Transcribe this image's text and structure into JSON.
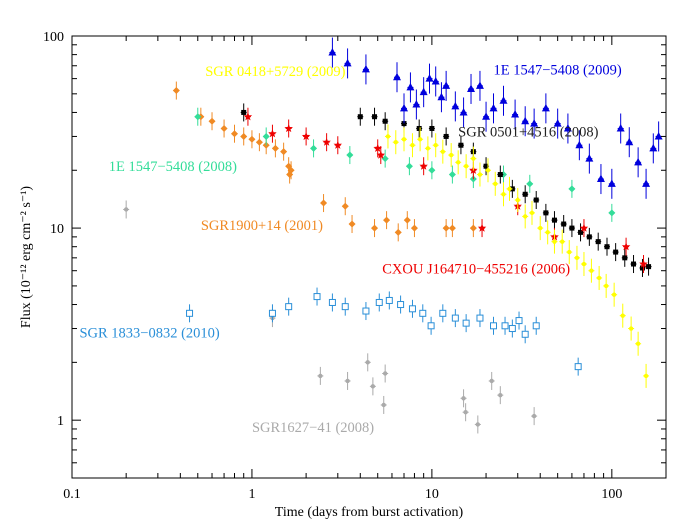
{
  "chart_data": {
    "type": "scatter",
    "xlabel": "Time (days from burst activation)",
    "ylabel": "Flux (10⁻¹² erg cm⁻² s⁻¹)",
    "x_scale": "log",
    "y_scale": "log",
    "xlim": [
      0.1,
      200
    ],
    "ylim": [
      0.5,
      100
    ],
    "x_ticks": [
      {
        "value": 0.1,
        "label": "0.1"
      },
      {
        "value": 1,
        "label": "1"
      },
      {
        "value": 10,
        "label": "10"
      },
      {
        "value": 100,
        "label": "100"
      }
    ],
    "y_ticks": [
      {
        "value": 1,
        "label": "1"
      },
      {
        "value": 10,
        "label": "10"
      },
      {
        "value": 100,
        "label": "100"
      }
    ],
    "grid": false,
    "series": [
      {
        "name": "1E 1547−5408 (2009)",
        "color": "#0000dd",
        "marker": "triangle",
        "points": [
          {
            "x": 2.8,
            "y": 82
          },
          {
            "x": 3.4,
            "y": 72
          },
          {
            "x": 4.3,
            "y": 67
          },
          {
            "x": 6.4,
            "y": 61
          },
          {
            "x": 7.0,
            "y": 42
          },
          {
            "x": 7.6,
            "y": 54
          },
          {
            "x": 8.2,
            "y": 44
          },
          {
            "x": 9.0,
            "y": 51
          },
          {
            "x": 9.7,
            "y": 60
          },
          {
            "x": 10.5,
            "y": 58
          },
          {
            "x": 11.3,
            "y": 48
          },
          {
            "x": 12.0,
            "y": 55
          },
          {
            "x": 13.5,
            "y": 43
          },
          {
            "x": 15.0,
            "y": 40
          },
          {
            "x": 16.5,
            "y": 53
          },
          {
            "x": 18.5,
            "y": 55
          },
          {
            "x": 20.0,
            "y": 38
          },
          {
            "x": 22.0,
            "y": 42
          },
          {
            "x": 25.0,
            "y": 46
          },
          {
            "x": 29.0,
            "y": 39
          },
          {
            "x": 33.0,
            "y": 36
          },
          {
            "x": 37.0,
            "y": 35
          },
          {
            "x": 43.0,
            "y": 42
          },
          {
            "x": 50.0,
            "y": 35
          },
          {
            "x": 57.0,
            "y": 33
          },
          {
            "x": 66.0,
            "y": 27
          },
          {
            "x": 75.0,
            "y": 23
          },
          {
            "x": 87.0,
            "y": 18
          },
          {
            "x": 100.0,
            "y": 17
          },
          {
            "x": 112.0,
            "y": 33
          },
          {
            "x": 125.0,
            "y": 28
          },
          {
            "x": 140.0,
            "y": 22
          },
          {
            "x": 155.0,
            "y": 17
          },
          {
            "x": 170.0,
            "y": 26
          },
          {
            "x": 182.0,
            "y": 30
          }
        ]
      },
      {
        "name": "SGR 0418+5729 (2009)",
        "color": "#ffff00",
        "marker": "dot",
        "points": [
          {
            "x": 5.7,
            "y": 30
          },
          {
            "x": 6.3,
            "y": 28
          },
          {
            "x": 7.0,
            "y": 29
          },
          {
            "x": 7.8,
            "y": 27
          },
          {
            "x": 8.6,
            "y": 29
          },
          {
            "x": 9.5,
            "y": 26
          },
          {
            "x": 10.5,
            "y": 27
          },
          {
            "x": 11.5,
            "y": 25
          },
          {
            "x": 12.8,
            "y": 24
          },
          {
            "x": 14.0,
            "y": 22
          },
          {
            "x": 15.5,
            "y": 21
          },
          {
            "x": 17.0,
            "y": 23
          },
          {
            "x": 18.5,
            "y": 19
          },
          {
            "x": 20.5,
            "y": 20
          },
          {
            "x": 22.5,
            "y": 17
          },
          {
            "x": 25.0,
            "y": 15
          },
          {
            "x": 27.0,
            "y": 16
          },
          {
            "x": 30.0,
            "y": 14
          },
          {
            "x": 33.0,
            "y": 11.5
          },
          {
            "x": 36.0,
            "y": 12
          },
          {
            "x": 40.0,
            "y": 10
          },
          {
            "x": 44.0,
            "y": 9.5
          },
          {
            "x": 48.0,
            "y": 8.5
          },
          {
            "x": 53.0,
            "y": 8.5
          },
          {
            "x": 58.0,
            "y": 7.5
          },
          {
            "x": 64.0,
            "y": 7
          },
          {
            "x": 70.0,
            "y": 6.5
          },
          {
            "x": 77.0,
            "y": 6
          },
          {
            "x": 85.0,
            "y": 5.5
          },
          {
            "x": 93.0,
            "y": 5
          },
          {
            "x": 103.0,
            "y": 4.5
          },
          {
            "x": 115.0,
            "y": 3.5
          },
          {
            "x": 128.0,
            "y": 3
          },
          {
            "x": 140.0,
            "y": 2.5
          },
          {
            "x": 155.0,
            "y": 1.7
          }
        ]
      },
      {
        "name": "SGR 0501+4516 (2008)",
        "color": "#000000",
        "marker": "square",
        "points": [
          {
            "x": 0.9,
            "y": 40
          },
          {
            "x": 4.0,
            "y": 38
          },
          {
            "x": 4.8,
            "y": 38
          },
          {
            "x": 5.5,
            "y": 36
          },
          {
            "x": 7.0,
            "y": 35
          },
          {
            "x": 8.5,
            "y": 33
          },
          {
            "x": 10.0,
            "y": 33
          },
          {
            "x": 12.0,
            "y": 30
          },
          {
            "x": 14.5,
            "y": 27
          },
          {
            "x": 17.0,
            "y": 25
          },
          {
            "x": 20.0,
            "y": 21
          },
          {
            "x": 24.0,
            "y": 19
          },
          {
            "x": 28.0,
            "y": 16
          },
          {
            "x": 33.0,
            "y": 15
          },
          {
            "x": 38.0,
            "y": 14
          },
          {
            "x": 43.0,
            "y": 12
          },
          {
            "x": 48.0,
            "y": 11
          },
          {
            "x": 54.0,
            "y": 10.5
          },
          {
            "x": 60.0,
            "y": 10
          },
          {
            "x": 67.0,
            "y": 9.5
          },
          {
            "x": 75.0,
            "y": 9
          },
          {
            "x": 84.0,
            "y": 8.5
          },
          {
            "x": 94.0,
            "y": 8
          },
          {
            "x": 105.0,
            "y": 7.5
          },
          {
            "x": 118.0,
            "y": 7
          },
          {
            "x": 132.0,
            "y": 6.5
          },
          {
            "x": 148.0,
            "y": 6.2
          },
          {
            "x": 160.0,
            "y": 6.3
          }
        ]
      },
      {
        "name": "1E 1547−5408 (2008)",
        "color": "#33dd99",
        "marker": "diamond",
        "points": [
          {
            "x": 0.5,
            "y": 38
          },
          {
            "x": 1.2,
            "y": 30
          },
          {
            "x": 2.2,
            "y": 26
          },
          {
            "x": 3.5,
            "y": 24
          },
          {
            "x": 5.5,
            "y": 23
          },
          {
            "x": 7.5,
            "y": 21
          },
          {
            "x": 10.0,
            "y": 20
          },
          {
            "x": 13.0,
            "y": 19
          },
          {
            "x": 17.0,
            "y": 18
          },
          {
            "x": 25.0,
            "y": 19
          },
          {
            "x": 35.0,
            "y": 17
          },
          {
            "x": 60.0,
            "y": 16
          },
          {
            "x": 100.0,
            "y": 12
          }
        ]
      },
      {
        "name": "CXOU J164710−455216 (2006)",
        "color": "#ee0000",
        "marker": "star",
        "points": [
          {
            "x": 0.95,
            "y": 38
          },
          {
            "x": 1.3,
            "y": 31
          },
          {
            "x": 1.6,
            "y": 33
          },
          {
            "x": 2.0,
            "y": 30
          },
          {
            "x": 2.6,
            "y": 28
          },
          {
            "x": 3.0,
            "y": 27
          },
          {
            "x": 5.0,
            "y": 26
          },
          {
            "x": 5.2,
            "y": 24
          },
          {
            "x": 9.0,
            "y": 21
          },
          {
            "x": 17.0,
            "y": 20
          },
          {
            "x": 19.0,
            "y": 10
          },
          {
            "x": 30.0,
            "y": 13
          },
          {
            "x": 48.0,
            "y": 9
          },
          {
            "x": 70.0,
            "y": 10
          },
          {
            "x": 120.0,
            "y": 8
          },
          {
            "x": 150.0,
            "y": 6.5
          }
        ]
      },
      {
        "name": "SGR1900+14 (2001)",
        "color": "#f08a24",
        "marker": "diamond",
        "points": [
          {
            "x": 0.38,
            "y": 52
          },
          {
            "x": 0.52,
            "y": 38
          },
          {
            "x": 0.6,
            "y": 36
          },
          {
            "x": 0.7,
            "y": 33
          },
          {
            "x": 0.8,
            "y": 31
          },
          {
            "x": 0.9,
            "y": 30
          },
          {
            "x": 1.0,
            "y": 29
          },
          {
            "x": 1.1,
            "y": 28
          },
          {
            "x": 1.2,
            "y": 27
          },
          {
            "x": 1.35,
            "y": 26
          },
          {
            "x": 1.5,
            "y": 25
          },
          {
            "x": 1.6,
            "y": 21
          },
          {
            "x": 1.62,
            "y": 19
          },
          {
            "x": 1.65,
            "y": 20
          },
          {
            "x": 2.5,
            "y": 13.5
          },
          {
            "x": 3.3,
            "y": 13
          },
          {
            "x": 3.6,
            "y": 10.5
          },
          {
            "x": 4.8,
            "y": 10
          },
          {
            "x": 5.6,
            "y": 11
          },
          {
            "x": 6.5,
            "y": 9.5
          },
          {
            "x": 7.3,
            "y": 11
          },
          {
            "x": 8.0,
            "y": 10
          },
          {
            "x": 12.0,
            "y": 10
          },
          {
            "x": 13.0,
            "y": 10
          },
          {
            "x": 17.0,
            "y": 10
          }
        ]
      },
      {
        "name": "SGR 1833−0832 (2010)",
        "color": "#2a8fd8",
        "marker": "open-square",
        "points": [
          {
            "x": 0.45,
            "y": 3.6
          },
          {
            "x": 1.3,
            "y": 3.6
          },
          {
            "x": 1.6,
            "y": 3.9
          },
          {
            "x": 2.3,
            "y": 4.4
          },
          {
            "x": 2.8,
            "y": 4.1
          },
          {
            "x": 3.3,
            "y": 3.9
          },
          {
            "x": 4.3,
            "y": 3.7
          },
          {
            "x": 5.1,
            "y": 4.1
          },
          {
            "x": 5.8,
            "y": 4.2
          },
          {
            "x": 6.7,
            "y": 4.0
          },
          {
            "x": 7.8,
            "y": 3.8
          },
          {
            "x": 8.9,
            "y": 3.6
          },
          {
            "x": 9.9,
            "y": 3.1
          },
          {
            "x": 11.5,
            "y": 3.6
          },
          {
            "x": 13.5,
            "y": 3.4
          },
          {
            "x": 15.5,
            "y": 3.2
          },
          {
            "x": 18.5,
            "y": 3.4
          },
          {
            "x": 22.0,
            "y": 3.1
          },
          {
            "x": 25.5,
            "y": 3.1
          },
          {
            "x": 28.0,
            "y": 3.0
          },
          {
            "x": 30.5,
            "y": 3.3
          },
          {
            "x": 33.0,
            "y": 2.8
          },
          {
            "x": 38.0,
            "y": 3.1
          },
          {
            "x": 65.0,
            "y": 1.9
          }
        ]
      },
      {
        "name": "SGR1627−41 (2008)",
        "color": "#aaaaaa",
        "marker": "dot",
        "points": [
          {
            "x": 0.2,
            "y": 12.5
          },
          {
            "x": 1.3,
            "y": 3.4
          },
          {
            "x": 2.4,
            "y": 1.7
          },
          {
            "x": 3.4,
            "y": 1.6
          },
          {
            "x": 4.4,
            "y": 2.0
          },
          {
            "x": 4.7,
            "y": 1.5
          },
          {
            "x": 5.4,
            "y": 1.2
          },
          {
            "x": 5.5,
            "y": 1.75
          },
          {
            "x": 15.0,
            "y": 1.3
          },
          {
            "x": 15.4,
            "y": 1.1
          },
          {
            "x": 18.0,
            "y": 0.95
          },
          {
            "x": 21.5,
            "y": 1.6
          },
          {
            "x": 24.0,
            "y": 1.35
          },
          {
            "x": 37.0,
            "y": 1.05
          }
        ]
      }
    ],
    "annotations": [
      {
        "text": "SGR 0418+5729 (2009)",
        "color": "#ffff00",
        "x": 0.55,
        "y": 62
      },
      {
        "text": "1E 1547−5408 (2009)",
        "color": "#0000dd",
        "x": 22.0,
        "y": 63
      },
      {
        "text": "SGR 0501+4516 (2008)",
        "color": "#222222",
        "x": 14.0,
        "y": 30
      },
      {
        "text": "1E 1547−5408 (2008)",
        "color": "#33dd99",
        "x": 0.16,
        "y": 19.8
      },
      {
        "text": "SGR1900+14 (2001)",
        "color": "#f08a24",
        "x": 0.52,
        "y": 9.8
      },
      {
        "text": "CXOU J164710−455216 (2006)",
        "color": "#ee0000",
        "x": 5.3,
        "y": 5.8
      },
      {
        "text": "SGR 1833−0832 (2010)",
        "color": "#2a8fd8",
        "x": 0.11,
        "y": 2.7
      },
      {
        "text": "SGR1627−41 (2008)",
        "color": "#aaaaaa",
        "x": 1.0,
        "y": 0.87
      }
    ]
  }
}
